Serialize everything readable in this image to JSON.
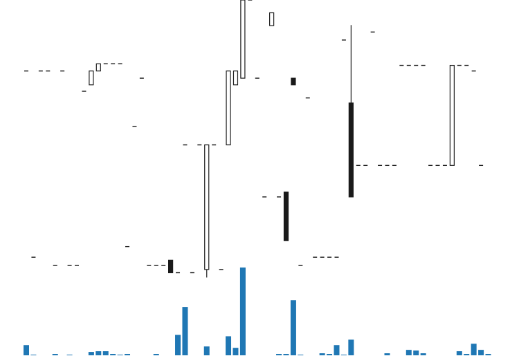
{
  "chart_data": [
    {
      "type": "candlestick",
      "title": "",
      "xlabel": "",
      "ylabel": "",
      "grid": false,
      "legend": "none",
      "ylim": [
        0,
        100
      ],
      "colors": {
        "up_fill": "#ffffff",
        "down_fill": "#1a1a1a",
        "stroke": "#1a1a1a"
      },
      "candles": [
        {
          "o": 73.4,
          "h": 73.4,
          "l": 73.4,
          "c": 73.4
        },
        {
          "o": 3.6,
          "h": 3.6,
          "l": 3.6,
          "c": 3.6
        },
        {
          "o": 73.4,
          "h": 73.4,
          "l": 73.4,
          "c": 73.4
        },
        {
          "o": 73.4,
          "h": 73.4,
          "l": 73.4,
          "c": 73.4
        },
        {
          "o": 0.5,
          "h": 0.5,
          "l": 0.5,
          "c": 0.5
        },
        {
          "o": 73.4,
          "h": 73.4,
          "l": 73.4,
          "c": 73.4
        },
        {
          "o": 0.5,
          "h": 0.5,
          "l": 0.5,
          "c": 0.5
        },
        {
          "o": 0.5,
          "h": 0.5,
          "l": 0.5,
          "c": 0.5
        },
        {
          "o": 65.8,
          "h": 65.8,
          "l": 65.8,
          "c": 65.8
        },
        {
          "o": 68.2,
          "h": 73.4,
          "l": 68.2,
          "c": 73.4
        },
        {
          "o": 73.4,
          "h": 76.1,
          "l": 73.4,
          "c": 76.1
        },
        {
          "o": 76.1,
          "h": 76.1,
          "l": 76.1,
          "c": 76.1
        },
        {
          "o": 76.1,
          "h": 76.1,
          "l": 76.1,
          "c": 76.1
        },
        {
          "o": 76.1,
          "h": 76.1,
          "l": 76.1,
          "c": 76.1
        },
        {
          "o": 7.6,
          "h": 7.6,
          "l": 7.6,
          "c": 7.6
        },
        {
          "o": 52.6,
          "h": 52.6,
          "l": 52.6,
          "c": 52.6
        },
        {
          "o": 70.7,
          "h": 70.7,
          "l": 70.7,
          "c": 70.7
        },
        {
          "o": 0.5,
          "h": 0.5,
          "l": 0.5,
          "c": 0.5
        },
        {
          "o": 0.5,
          "h": 0.5,
          "l": 0.5,
          "c": 0.5
        },
        {
          "o": 0.5,
          "h": 0.5,
          "l": 0.5,
          "c": 0.5
        },
        {
          "o": 2.5,
          "h": 2.5,
          "l": -2.2,
          "c": -2.2
        },
        {
          "o": -2.2,
          "h": -2.2,
          "l": -2.2,
          "c": -2.2
        },
        {
          "o": 45.7,
          "h": 45.7,
          "l": 45.7,
          "c": 45.7
        },
        {
          "o": -2.2,
          "h": -2.2,
          "l": -2.2,
          "c": -2.2
        },
        {
          "o": 45.7,
          "h": 45.7,
          "l": 45.7,
          "c": 45.7
        },
        {
          "o": -1.0,
          "h": 45.7,
          "l": -4.0,
          "c": 45.7
        },
        {
          "o": 45.7,
          "h": 45.7,
          "l": 45.7,
          "c": 45.7
        },
        {
          "o": -1.0,
          "h": -1.0,
          "l": -1.0,
          "c": -1.0
        },
        {
          "o": 45.7,
          "h": 73.4,
          "l": 45.7,
          "c": 73.4
        },
        {
          "o": 68.2,
          "h": 73.4,
          "l": 68.2,
          "c": 73.4
        },
        {
          "o": 70.7,
          "h": 100,
          "l": 70.7,
          "c": 100
        },
        {
          "o": 100,
          "h": 100,
          "l": 100,
          "c": 100
        },
        {
          "o": 70.7,
          "h": 70.7,
          "l": 70.7,
          "c": 70.7
        },
        {
          "o": 26.2,
          "h": 26.2,
          "l": 26.2,
          "c": 26.2
        },
        {
          "o": 90.4,
          "h": 95.2,
          "l": 90.4,
          "c": 95.2
        },
        {
          "o": 26.2,
          "h": 26.2,
          "l": 26.2,
          "c": 26.2
        },
        {
          "o": 28.0,
          "h": 28.0,
          "l": 9.8,
          "c": 9.8
        },
        {
          "o": 70.7,
          "h": 70.7,
          "l": 68.2,
          "c": 68.2
        },
        {
          "o": 0.5,
          "h": 0.5,
          "l": 0.5,
          "c": 0.5
        },
        {
          "o": 63.3,
          "h": 63.3,
          "l": 63.3,
          "c": 63.3
        },
        {
          "o": 3.6,
          "h": 3.6,
          "l": 3.6,
          "c": 3.6
        },
        {
          "o": 3.6,
          "h": 3.6,
          "l": 3.6,
          "c": 3.6
        },
        {
          "o": 3.6,
          "h": 3.6,
          "l": 3.6,
          "c": 3.6
        },
        {
          "o": 3.6,
          "h": 3.6,
          "l": 3.6,
          "c": 3.6
        },
        {
          "o": 85.0,
          "h": 85.0,
          "l": 85.0,
          "c": 85.0
        },
        {
          "o": 61.4,
          "h": 90.6,
          "l": 26.2,
          "c": 26.2
        },
        {
          "o": 38.0,
          "h": 38.0,
          "l": 38.0,
          "c": 38.0
        },
        {
          "o": 38.0,
          "h": 38.0,
          "l": 38.0,
          "c": 38.0
        },
        {
          "o": 88.0,
          "h": 88.0,
          "l": 88.0,
          "c": 88.0
        },
        {
          "o": 38.0,
          "h": 38.0,
          "l": 38.0,
          "c": 38.0
        },
        {
          "o": 38.0,
          "h": 38.0,
          "l": 38.0,
          "c": 38.0
        },
        {
          "o": 38.0,
          "h": 38.0,
          "l": 38.0,
          "c": 38.0
        },
        {
          "o": 75.5,
          "h": 75.5,
          "l": 75.5,
          "c": 75.5
        },
        {
          "o": 75.5,
          "h": 75.5,
          "l": 75.5,
          "c": 75.5
        },
        {
          "o": 75.5,
          "h": 75.5,
          "l": 75.5,
          "c": 75.5
        },
        {
          "o": 75.5,
          "h": 75.5,
          "l": 75.5,
          "c": 75.5
        },
        {
          "o": 38.0,
          "h": 38.0,
          "l": 38.0,
          "c": 38.0
        },
        {
          "o": 38.0,
          "h": 38.0,
          "l": 38.0,
          "c": 38.0
        },
        {
          "o": 38.0,
          "h": 38.0,
          "l": 38.0,
          "c": 38.0
        },
        {
          "o": 38.0,
          "h": 75.5,
          "l": 38.0,
          "c": 75.5
        },
        {
          "o": 75.5,
          "h": 75.5,
          "l": 75.5,
          "c": 75.5
        },
        {
          "o": 75.5,
          "h": 75.5,
          "l": 75.5,
          "c": 75.5
        },
        {
          "o": 73.4,
          "h": 73.4,
          "l": 73.4,
          "c": 73.4
        },
        {
          "o": 38.0,
          "h": 38.0,
          "l": 38.0,
          "c": 38.0
        }
      ]
    },
    {
      "type": "bar",
      "title": "",
      "xlabel": "",
      "ylabel": "",
      "grid": false,
      "legend": "none",
      "ylim": [
        0,
        130
      ],
      "colors": {
        "bar": "#1f77b4"
      },
      "values": [
        15,
        1,
        0,
        0,
        2,
        0,
        1,
        0,
        0,
        5,
        6,
        6,
        2,
        1,
        2,
        0,
        0,
        0,
        2,
        0,
        0,
        30,
        71,
        0,
        0,
        13,
        0,
        0,
        28,
        11,
        129,
        0,
        0,
        0,
        0,
        2,
        2,
        81,
        1,
        0,
        0,
        3,
        2,
        15,
        1,
        23,
        0,
        0,
        0,
        0,
        3,
        0,
        0,
        8,
        7,
        3,
        0,
        0,
        0,
        0,
        6,
        2,
        17,
        8,
        2,
        0,
        0
      ]
    }
  ]
}
